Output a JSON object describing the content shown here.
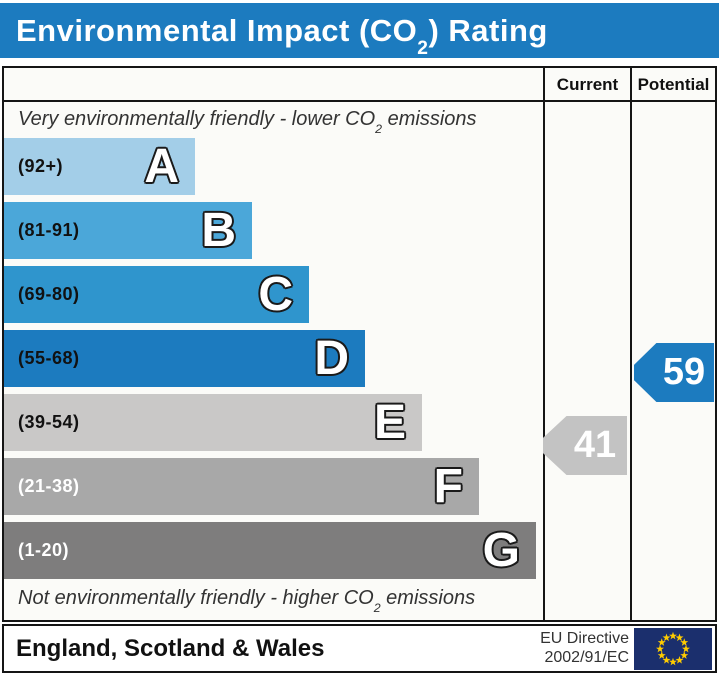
{
  "title": {
    "pre": "Environmental Impact (CO",
    "sub": "2",
    "post": ") Rating"
  },
  "columns": {
    "current": "Current",
    "potential": "Potential"
  },
  "top_note": {
    "pre": "Very environmentally friendly - lower CO",
    "sub": "2",
    "post": " emissions"
  },
  "bottom_note": {
    "pre": "Not environmentally friendly - higher CO",
    "sub": "2",
    "post": " emissions"
  },
  "bands": [
    {
      "letter": "A",
      "range": "(92+)",
      "min": 92,
      "max": 100,
      "color": "#a3cee8",
      "label_color": "#111111"
    },
    {
      "letter": "B",
      "range": "(81-91)",
      "min": 81,
      "max": 91,
      "color": "#4ba7d9",
      "label_color": "#111111"
    },
    {
      "letter": "C",
      "range": "(69-80)",
      "min": 69,
      "max": 80,
      "color": "#2f95cd",
      "label_color": "#111111"
    },
    {
      "letter": "D",
      "range": "(55-68)",
      "min": 55,
      "max": 68,
      "color": "#1c7bbf",
      "label_color": "#111111"
    },
    {
      "letter": "E",
      "range": "(39-54)",
      "min": 39,
      "max": 54,
      "color": "#c9c8c7",
      "label_color": "#111111"
    },
    {
      "letter": "F",
      "range": "(21-38)",
      "min": 21,
      "max": 38,
      "color": "#a8a8a8",
      "label_color": "#ffffff"
    },
    {
      "letter": "G",
      "range": "(1-20)",
      "min": 1,
      "max": 20,
      "color": "#7e7d7d",
      "label_color": "#ffffff"
    }
  ],
  "ratings": {
    "current": {
      "value": 41,
      "arrow_color": "#c3c3c3",
      "text_color": "#ffffff"
    },
    "potential": {
      "value": 59,
      "arrow_color": "#1c7bbf",
      "text_color": "#ffffff"
    }
  },
  "footer": {
    "region": "England, Scotland & Wales",
    "directive_line1": "EU Directive",
    "directive_line2": "2002/91/EC"
  },
  "colors": {
    "title_bar": "#1c7bbf",
    "border": "#151515",
    "chart_bg": "#fbfbf8",
    "eu_flag_bg": "#1b2f6d",
    "eu_star": "#ffcc00"
  },
  "chart_data": {
    "type": "bar",
    "title": "Environmental Impact (CO2) Rating",
    "categories": [
      "A (92+)",
      "B (81-91)",
      "C (69-80)",
      "D (55-68)",
      "E (39-54)",
      "F (21-38)",
      "G (1-20)"
    ],
    "band_ranges": [
      [
        92,
        100
      ],
      [
        81,
        91
      ],
      [
        69,
        80
      ],
      [
        55,
        68
      ],
      [
        39,
        54
      ],
      [
        21,
        38
      ],
      [
        1,
        20
      ]
    ],
    "current": 41,
    "current_band": "E",
    "potential": 59,
    "potential_band": "D",
    "top_label": "Very environmentally friendly - lower CO2 emissions",
    "bottom_label": "Not environmentally friendly - higher CO2 emissions",
    "region": "England, Scotland & Wales",
    "directive": "EU Directive 2002/91/EC"
  }
}
